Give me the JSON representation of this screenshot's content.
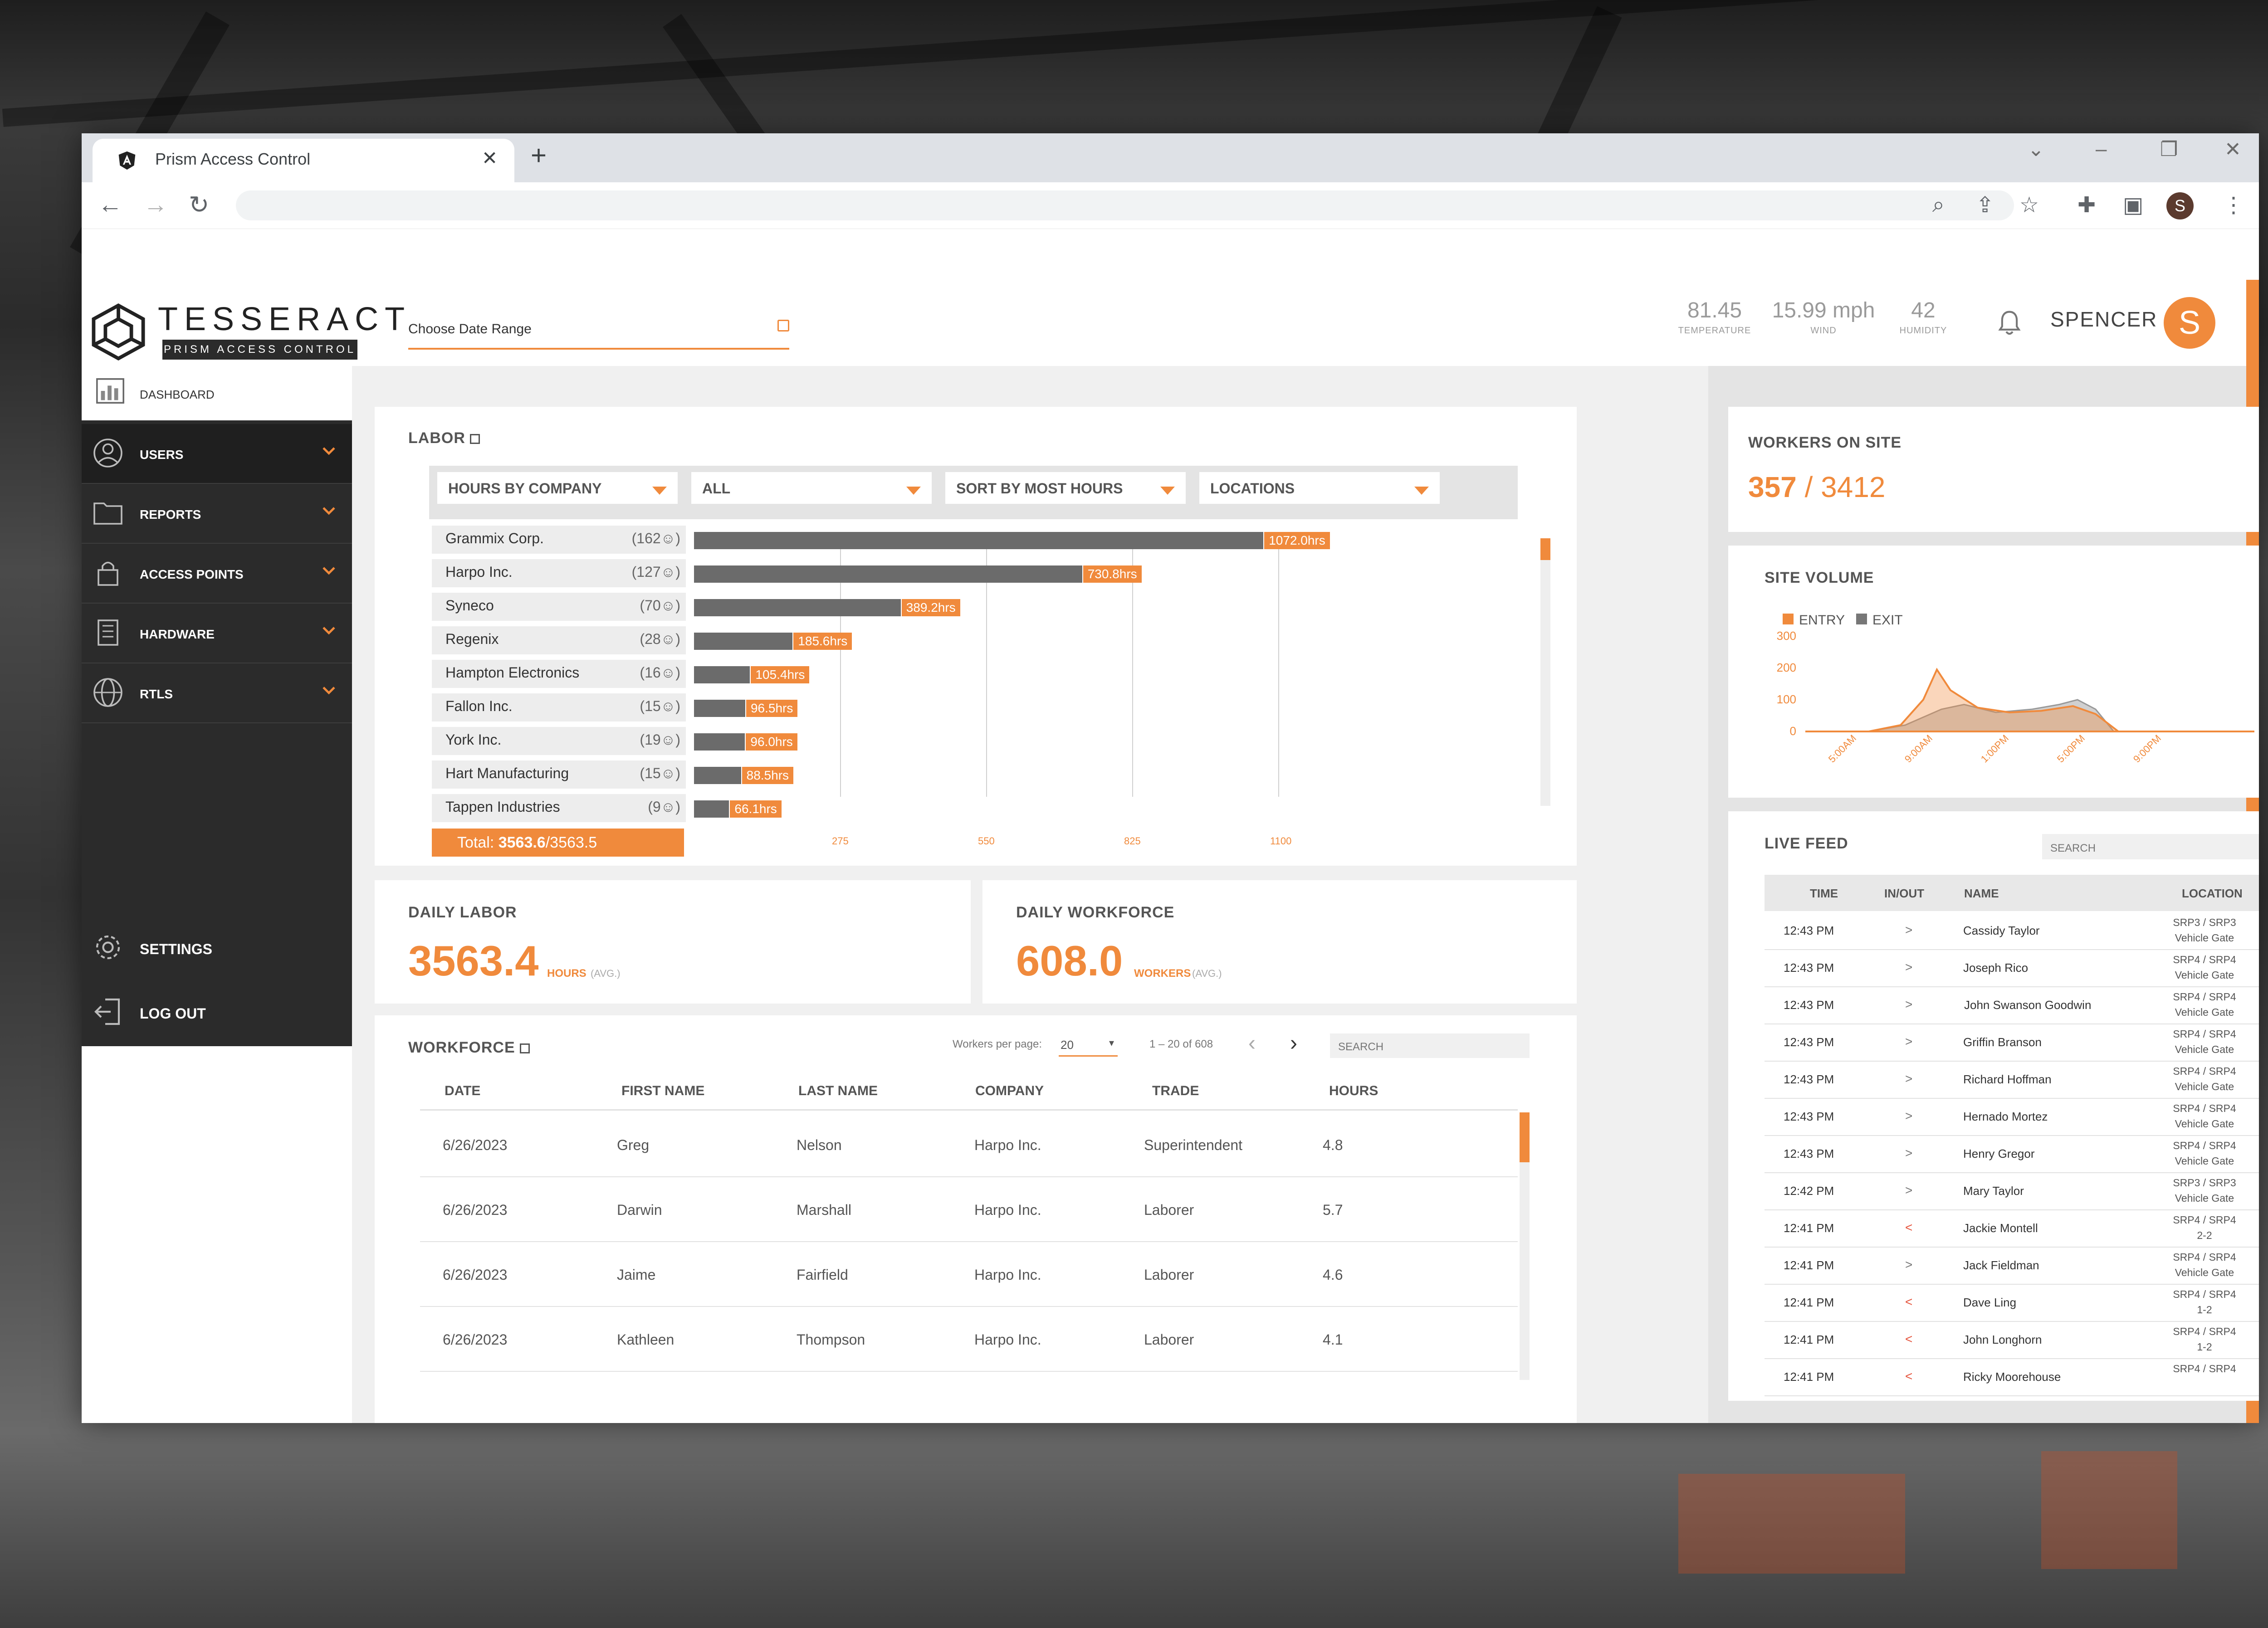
{
  "browser": {
    "tab_title": "Prism Access Control",
    "tab_close": "✕",
    "new_tab": "+",
    "avatar_letter": "S"
  },
  "brand": {
    "name": "TESSERACT",
    "subtitle": "PRISM ACCESS CONTROL"
  },
  "header": {
    "date_placeholder": "Choose Date Range",
    "weather": [
      {
        "value": "81.45",
        "label": "TEMPERATURE"
      },
      {
        "value": "15.99 mph",
        "label": "WIND"
      },
      {
        "value": "42",
        "label": "HUMIDITY"
      }
    ],
    "user_name": "SPENCER",
    "user_initial": "S"
  },
  "sidebar": {
    "dashboard": "DASHBOARD",
    "items": [
      {
        "label": "USERS"
      },
      {
        "label": "REPORTS"
      },
      {
        "label": "ACCESS POINTS"
      },
      {
        "label": "HARDWARE"
      },
      {
        "label": "RTLS"
      }
    ],
    "settings": "SETTINGS",
    "logout": "LOG OUT"
  },
  "labor": {
    "title": "LABOR",
    "filters": [
      "HOURS BY COMPANY",
      "ALL",
      "SORT BY MOST HOURS",
      "LOCATIONS"
    ],
    "total_prefix": "Total: ",
    "total_value": "3563.6",
    "total_suffix": "/3563.5"
  },
  "chart_data": {
    "type": "bar",
    "orientation": "horizontal",
    "categories": [
      "Grammix Corp.",
      "Harpo Inc.",
      "Syneco",
      "Regenix",
      "Hampton Electronics",
      "Fallon Inc.",
      "York Inc.",
      "Hart Manufacturing",
      "Tappen Industries"
    ],
    "counts": [
      "(162",
      "(127",
      "(70",
      "(28",
      "(16",
      "(15",
      "(19",
      "(15",
      "(9"
    ],
    "values": [
      1072.0,
      730.8,
      389.2,
      185.6,
      105.4,
      96.5,
      96.0,
      88.5,
      66.1
    ],
    "value_labels": [
      "1072.0hrs",
      "730.8hrs",
      "389.2hrs",
      "185.6hrs",
      "105.4hrs",
      "96.5hrs",
      "96.0hrs",
      "88.5hrs",
      "66.1hrs"
    ],
    "x_ticks": [
      "275",
      "550",
      "825",
      "1100"
    ],
    "xlim": [
      0,
      1100
    ],
    "grid": true,
    "colors": {
      "bar": "#6b6b6b",
      "label": "#f08a3c"
    }
  },
  "daily_labor": {
    "title": "DAILY LABOR",
    "value": "3563.4",
    "unit": "HOURS",
    "note": "(AVG.)"
  },
  "daily_workforce": {
    "title": "DAILY WORKFORCE",
    "value": "608.0",
    "unit": "WORKERS",
    "note": "(AVG.)"
  },
  "workforce": {
    "title": "WORKFORCE",
    "per_page_label": "Workers per page:",
    "per_page": "20",
    "range": "1 – 20 of 608",
    "search_placeholder": "SEARCH",
    "columns": [
      "DATE",
      "FIRST NAME",
      "LAST NAME",
      "COMPANY",
      "TRADE",
      "HOURS"
    ],
    "rows": [
      [
        "6/26/2023",
        "Greg",
        "Nelson",
        "Harpo Inc.",
        "Superintendent",
        "4.8"
      ],
      [
        "6/26/2023",
        "Darwin",
        "Marshall",
        "Harpo Inc.",
        "Laborer",
        "5.7"
      ],
      [
        "6/26/2023",
        "Jaime",
        "Fairfield",
        "Harpo Inc.",
        "Laborer",
        "4.6"
      ],
      [
        "6/26/2023",
        "Kathleen",
        "Thompson",
        "Harpo Inc.",
        "Laborer",
        "4.1"
      ]
    ]
  },
  "workers_on_site": {
    "title": "WORKERS ON SITE",
    "current": "357",
    "sep": " / ",
    "total": "3412"
  },
  "site_volume": {
    "title": "SITE VOLUME",
    "legend": [
      "ENTRY",
      "EXIT"
    ],
    "y_ticks": [
      "300",
      "200",
      "100",
      "0"
    ],
    "x_ticks": [
      "5:00AM",
      "9:00AM",
      "1:00PM",
      "5:00PM",
      "9:00PM"
    ],
    "colors": {
      "entry": "#f08a3c",
      "exit": "#9a9a9a"
    }
  },
  "live_feed": {
    "title": "LIVE FEED",
    "search_placeholder": "SEARCH",
    "columns": [
      "TIME",
      "IN/OUT",
      "NAME",
      "LOCATION"
    ],
    "rows": [
      {
        "time": "12:43 PM",
        "io": ">",
        "name": "Cassidy Taylor",
        "loc1": "SRP3 / SRP3",
        "loc2": "Vehicle Gate"
      },
      {
        "time": "12:43 PM",
        "io": ">",
        "name": "Joseph Rico",
        "loc1": "SRP4 / SRP4",
        "loc2": "Vehicle Gate"
      },
      {
        "time": "12:43 PM",
        "io": ">",
        "name": "John Swanson Goodwin",
        "loc1": "SRP4 / SRP4",
        "loc2": "Vehicle Gate"
      },
      {
        "time": "12:43 PM",
        "io": ">",
        "name": "Griffin Branson",
        "loc1": "SRP4 / SRP4",
        "loc2": "Vehicle Gate"
      },
      {
        "time": "12:43 PM",
        "io": ">",
        "name": "Richard Hoffman",
        "loc1": "SRP4 / SRP4",
        "loc2": "Vehicle Gate"
      },
      {
        "time": "12:43 PM",
        "io": ">",
        "name": "Hernado Mortez",
        "loc1": "SRP4 / SRP4",
        "loc2": "Vehicle Gate"
      },
      {
        "time": "12:43 PM",
        "io": ">",
        "name": "Henry Gregor",
        "loc1": "SRP4 / SRP4",
        "loc2": "Vehicle Gate"
      },
      {
        "time": "12:42 PM",
        "io": ">",
        "name": "Mary Taylor",
        "loc1": "SRP3 / SRP3",
        "loc2": "Vehicle Gate"
      },
      {
        "time": "12:41 PM",
        "io": "<",
        "name": "Jackie Montell",
        "loc1": "SRP4 / SRP4",
        "loc2": "2-2"
      },
      {
        "time": "12:41 PM",
        "io": ">",
        "name": "Jack Fieldman",
        "loc1": "SRP4 / SRP4",
        "loc2": "Vehicle Gate"
      },
      {
        "time": "12:41 PM",
        "io": "<",
        "name": "Dave Ling",
        "loc1": "SRP4 / SRP4",
        "loc2": "1-2"
      },
      {
        "time": "12:41 PM",
        "io": "<",
        "name": "John Longhorn",
        "loc1": "SRP4 / SRP4",
        "loc2": "1-2"
      },
      {
        "time": "12:41 PM",
        "io": "<",
        "name": "Ricky Moorehouse",
        "loc1": "SRP4 / SRP4",
        "loc2": ""
      }
    ]
  },
  "colors": {
    "accent": "#f08a3c",
    "sidebar": "#2b2b2b"
  }
}
